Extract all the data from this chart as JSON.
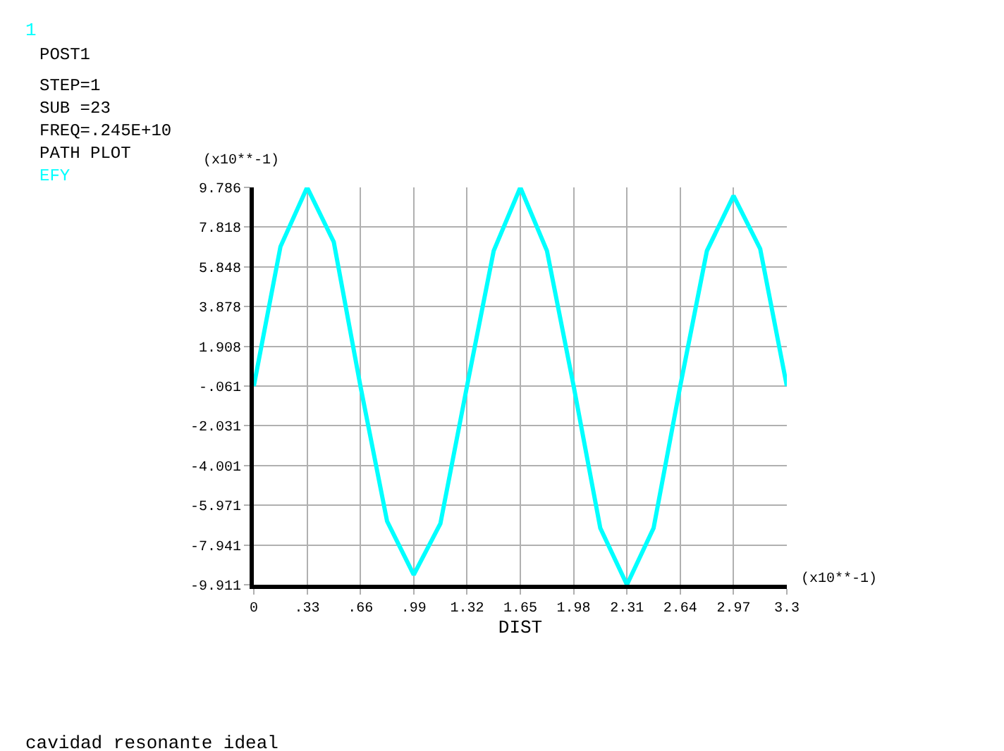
{
  "chart_data": {
    "type": "line",
    "xlabel": "DIST",
    "ylabel": "(x10**-1)",
    "annotations": [
      "1",
      "POST1",
      "STEP=1",
      "SUB =23",
      "FREQ=.245E+10",
      "PATH PLOT",
      "(x10**-1)",
      "cavidad resonante ideal"
    ],
    "x": [
      0,
      0.165,
      0.33,
      0.495,
      0.66,
      0.825,
      0.99,
      1.155,
      1.32,
      1.485,
      1.65,
      1.815,
      1.98,
      2.145,
      2.31,
      2.475,
      2.64,
      2.805,
      2.97,
      3.135,
      3.3
    ],
    "series": [
      {
        "name": "EFY",
        "color": "#00ffff",
        "values": [
          -0.061,
          6.85,
          9.786,
          7.08,
          -0.061,
          -6.76,
          -9.42,
          -6.88,
          -0.061,
          6.64,
          9.786,
          6.64,
          -0.061,
          -7.1,
          -9.911,
          -7.1,
          -0.061,
          6.64,
          9.37,
          6.74,
          -0.061
        ]
      }
    ],
    "xlim": [
      0,
      3.3
    ],
    "xticks": [
      0,
      {
        "value": 0.33,
        "label": ".33"
      },
      {
        "value": 0.66,
        "label": ".66"
      },
      {
        "value": 0.99,
        "label": ".99"
      },
      1.32,
      1.65,
      1.98,
      2.31,
      2.64,
      2.97,
      3.3
    ],
    "ylim": [
      -9.911,
      9.786
    ],
    "yticks": [
      -9.911,
      -7.941,
      -5.971,
      -4.001,
      -2.031,
      {
        "value": -0.061,
        "label": "-.061"
      },
      1.908,
      3.878,
      5.848,
      7.818,
      9.786
    ],
    "grid": true,
    "legend": false,
    "marker": "none",
    "line_style": "solid"
  }
}
